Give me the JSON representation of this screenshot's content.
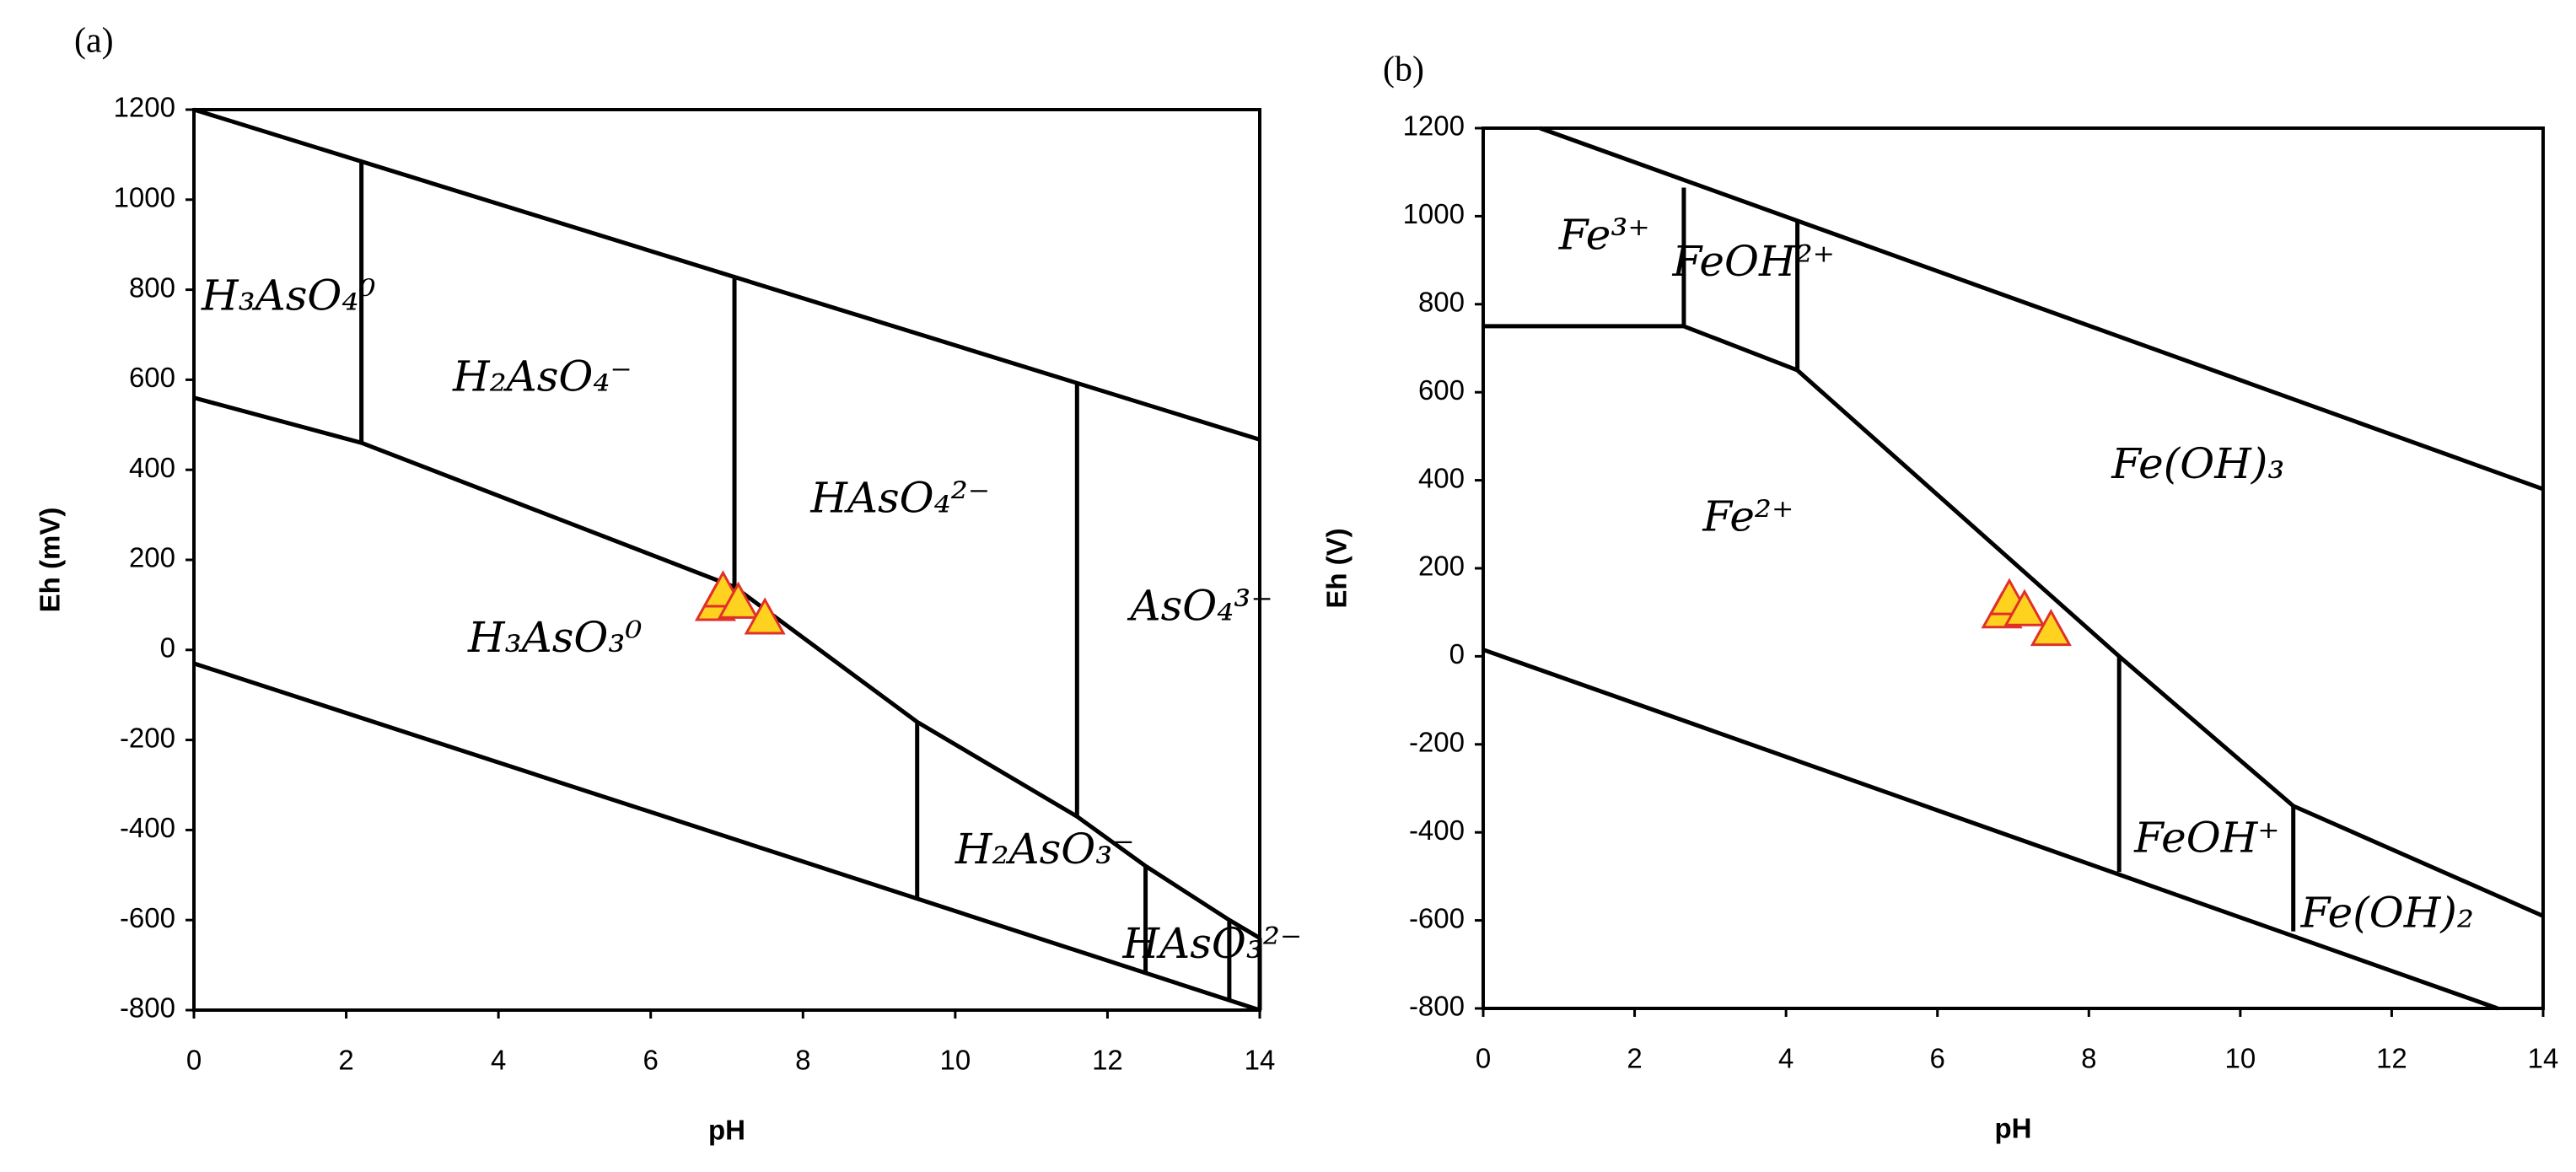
{
  "chart_data": [
    {
      "type": "pourbaix",
      "panel": "(a)",
      "xlabel": "pH",
      "ylabel": "Eh (mV)",
      "xlim": [
        0,
        14
      ],
      "ylim": [
        -800,
        1200
      ],
      "xticks": [
        0,
        2,
        4,
        6,
        8,
        10,
        12,
        14
      ],
      "yticks": [
        -800,
        -600,
        -400,
        -200,
        0,
        200,
        400,
        600,
        800,
        1000,
        1200
      ],
      "line_color": "#000000",
      "boundaries": [
        {
          "x": [
            0,
            14
          ],
          "values": [
            1200,
            467
          ]
        },
        {
          "x": [
            0,
            14
          ],
          "values": [
            -30,
            -800
          ]
        },
        {
          "x": [
            0,
            2.2,
            7.1,
            9.5,
            11.6,
            12.5,
            13.6,
            14
          ],
          "values": [
            560,
            460,
            140,
            -160,
            -370,
            -480,
            -600,
            -640
          ]
        },
        {
          "x": [
            2.2,
            2.2
          ],
          "values": [
            460,
            1084
          ]
        },
        {
          "x": [
            7.1,
            7.1
          ],
          "values": [
            140,
            827
          ]
        },
        {
          "x": [
            11.6,
            11.6
          ],
          "values": [
            -370,
            591
          ]
        },
        {
          "x": [
            9.5,
            9.5
          ],
          "values": [
            -160,
            -552
          ]
        },
        {
          "x": [
            12.5,
            12.5
          ],
          "values": [
            -480,
            -717
          ]
        },
        {
          "x": [
            13.6,
            13.6
          ],
          "values": [
            -600,
            -778
          ]
        },
        {
          "x": [
            14,
            14
          ],
          "values": [
            -640,
            -800
          ]
        }
      ],
      "regions": [
        "H₃AsO₄⁰",
        "H₂AsO₄⁻",
        "HAsO₄²⁻",
        "AsO₄³⁻",
        "H₃AsO₃⁰",
        "H₂AsO₃⁻",
        "HAsO₃²⁻"
      ],
      "points": {
        "x": [
          6.85,
          6.95,
          7.15,
          7.5
        ],
        "values": [
          100,
          130,
          105,
          70
        ],
        "color": "#ffd21f",
        "edge_color": "#e0302a"
      }
    },
    {
      "type": "pourbaix",
      "panel": "(b)",
      "xlabel": "pH",
      "ylabel": "Eh (V)",
      "xlim": [
        0,
        14
      ],
      "ylim": [
        -800,
        1200
      ],
      "xticks": [
        0,
        2,
        4,
        6,
        8,
        10,
        12,
        14
      ],
      "yticks": [
        -800,
        -600,
        -400,
        -200,
        0,
        200,
        400,
        600,
        800,
        1000,
        1200
      ],
      "line_color": "#000000",
      "boundaries": [
        {
          "x": [
            0.75,
            14
          ],
          "values": [
            1200,
            380
          ]
        },
        {
          "x": [
            0,
            13.4
          ],
          "values": [
            15,
            -800
          ]
        },
        {
          "x": [
            0,
            2.65,
            4.15,
            8.4,
            10.7,
            14
          ],
          "values": [
            750,
            750,
            650,
            0,
            -340,
            -590
          ]
        },
        {
          "x": [
            2.65,
            2.65
          ],
          "values": [
            750,
            1065
          ]
        },
        {
          "x": [
            4.15,
            4.15
          ],
          "values": [
            650,
            990
          ]
        },
        {
          "x": [
            8.4,
            8.4
          ],
          "values": [
            0,
            -490
          ]
        },
        {
          "x": [
            10.7,
            10.7
          ],
          "values": [
            -340,
            -625
          ]
        }
      ],
      "regions": [
        "Fe³⁺",
        "FeOH²⁺",
        "Fe²⁺",
        "Fe(OH)₃",
        "FeOH⁺",
        "Fe(OH)₂"
      ],
      "points": {
        "x": [
          6.85,
          6.95,
          7.15,
          7.5
        ],
        "values": [
          100,
          130,
          105,
          60
        ],
        "color": "#ffd21f",
        "edge_color": "#e0302a"
      }
    }
  ]
}
